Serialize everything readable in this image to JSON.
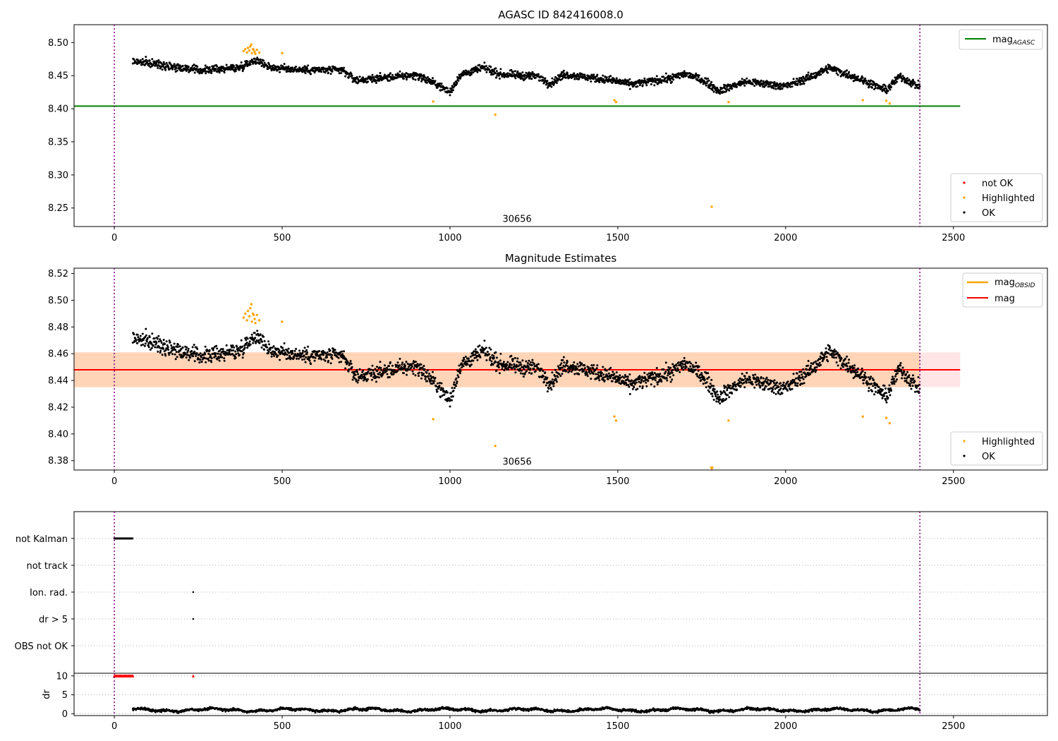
{
  "chart_data": [
    {
      "type": "scatter",
      "title": "AGASC ID 842416008.0",
      "xlim": [
        -120,
        2780
      ],
      "ylim": [
        8.222,
        8.527
      ],
      "x_ticks": [
        0,
        500,
        1000,
        1500,
        2000,
        2500
      ],
      "y_ticks": [
        "8.25",
        "8.30",
        "8.35",
        "8.40",
        "8.45",
        "8.50"
      ],
      "vlines": [
        0,
        2400
      ],
      "obsid_label": {
        "text": "30656",
        "x": 1200,
        "y": 8.233
      },
      "hlines": [
        {
          "name": "mag_AGASC",
          "y": 8.404,
          "x_range": [
            -120,
            2520
          ],
          "color": "#008000"
        }
      ],
      "line_legend": {
        "placement": "top-right",
        "entries": [
          {
            "label": "mag",
            "sub": "AGASC",
            "color": "#008000"
          }
        ]
      },
      "marker_legend": {
        "placement": "bottom-right",
        "entries": [
          {
            "label": "not OK",
            "color": "#ff0000"
          },
          {
            "label": "Highlighted",
            "color": "#ffa500"
          },
          {
            "label": "OK",
            "color": "#000000"
          }
        ]
      },
      "series": [
        {
          "name": "OK",
          "color": "#000000",
          "x_range": [
            55,
            2400
          ],
          "trend": [
            [
              55,
              8.472
            ],
            [
              150,
              8.466
            ],
            [
              250,
              8.458
            ],
            [
              370,
              8.462
            ],
            [
              420,
              8.474
            ],
            [
              470,
              8.462
            ],
            [
              560,
              8.459
            ],
            [
              680,
              8.458
            ],
            [
              720,
              8.443
            ],
            [
              900,
              8.451
            ],
            [
              960,
              8.437
            ],
            [
              1000,
              8.425
            ],
            [
              1030,
              8.451
            ],
            [
              1100,
              8.462
            ],
            [
              1150,
              8.452
            ],
            [
              1260,
              8.449
            ],
            [
              1300,
              8.438
            ],
            [
              1340,
              8.452
            ],
            [
              1480,
              8.443
            ],
            [
              1540,
              8.437
            ],
            [
              1660,
              8.446
            ],
            [
              1700,
              8.453
            ],
            [
              1760,
              8.442
            ],
            [
              1800,
              8.427
            ],
            [
              1880,
              8.441
            ],
            [
              2000,
              8.434
            ],
            [
              2080,
              8.449
            ],
            [
              2130,
              8.462
            ],
            [
              2230,
              8.443
            ],
            [
              2300,
              8.428
            ],
            [
              2340,
              8.449
            ],
            [
              2400,
              8.433
            ]
          ],
          "scatter_sd": 0.0055
        },
        {
          "name": "Highlighted",
          "color": "#ffa500",
          "points": [
            [
              385,
              8.487
            ],
            [
              390,
              8.49
            ],
            [
              395,
              8.485
            ],
            [
              398,
              8.492
            ],
            [
              402,
              8.488
            ],
            [
              405,
              8.494
            ],
            [
              408,
              8.497
            ],
            [
              410,
              8.484
            ],
            [
              413,
              8.49
            ],
            [
              415,
              8.489
            ],
            [
              418,
              8.486
            ],
            [
              420,
              8.483
            ],
            [
              425,
              8.489
            ],
            [
              432,
              8.485
            ],
            [
              500,
              8.484
            ],
            [
              950,
              8.411
            ],
            [
              1135,
              8.391
            ],
            [
              1490,
              8.413
            ],
            [
              1495,
              8.41
            ],
            [
              1780,
              8.252
            ],
            [
              1830,
              8.41
            ],
            [
              2230,
              8.413
            ],
            [
              2300,
              8.412
            ],
            [
              2310,
              8.408
            ]
          ]
        }
      ]
    },
    {
      "type": "scatter",
      "title": "Magnitude Estimates",
      "xlim": [
        -120,
        2780
      ],
      "ylim": [
        8.373,
        8.524
      ],
      "x_ticks": [
        0,
        500,
        1000,
        1500,
        2000,
        2500
      ],
      "y_ticks": [
        "8.38",
        "8.40",
        "8.42",
        "8.44",
        "8.46",
        "8.48",
        "8.50",
        "8.52"
      ],
      "vlines": [
        0,
        2400
      ],
      "obsid_label": {
        "text": "30656",
        "x": 1200,
        "y": 8.379
      },
      "bands": [
        {
          "name": "mag_OBSID band",
          "y_range": [
            8.435,
            8.461
          ],
          "x_range": [
            -120,
            2400
          ],
          "color": "#ffa500",
          "opacity": 0.2
        },
        {
          "name": "mag band",
          "y_range": [
            8.435,
            8.461
          ],
          "x_range": [
            -120,
            2520
          ],
          "color": "#ff0000",
          "opacity": 0.1
        }
      ],
      "hlines": [
        {
          "name": "mag_OBSID",
          "y": 8.448,
          "x_range": [
            -120,
            2400
          ],
          "color": "#ffa500"
        },
        {
          "name": "mag",
          "y": 8.448,
          "x_range": [
            -120,
            2520
          ],
          "color": "#ff0000"
        }
      ],
      "line_legend": {
        "placement": "top-right",
        "entries": [
          {
            "label": "mag",
            "sub": "OBSID",
            "color": "#ffa500"
          },
          {
            "label": "mag",
            "sub": "",
            "color": "#ff0000"
          }
        ]
      },
      "marker_legend": {
        "placement": "bottom-right",
        "entries": [
          {
            "label": "Highlighted",
            "color": "#ffa500"
          },
          {
            "label": "OK",
            "color": "#000000"
          }
        ]
      },
      "series": [
        {
          "name": "OK",
          "color": "#000000",
          "x_range": [
            55,
            2400
          ],
          "trend": [
            [
              55,
              8.472
            ],
            [
              150,
              8.466
            ],
            [
              250,
              8.458
            ],
            [
              370,
              8.462
            ],
            [
              420,
              8.474
            ],
            [
              470,
              8.462
            ],
            [
              560,
              8.459
            ],
            [
              680,
              8.458
            ],
            [
              720,
              8.443
            ],
            [
              900,
              8.451
            ],
            [
              960,
              8.437
            ],
            [
              1000,
              8.425
            ],
            [
              1030,
              8.451
            ],
            [
              1100,
              8.462
            ],
            [
              1150,
              8.452
            ],
            [
              1260,
              8.449
            ],
            [
              1300,
              8.438
            ],
            [
              1340,
              8.452
            ],
            [
              1480,
              8.443
            ],
            [
              1540,
              8.437
            ],
            [
              1660,
              8.446
            ],
            [
              1700,
              8.453
            ],
            [
              1760,
              8.442
            ],
            [
              1800,
              8.427
            ],
            [
              1880,
              8.441
            ],
            [
              2000,
              8.434
            ],
            [
              2080,
              8.449
            ],
            [
              2130,
              8.462
            ],
            [
              2230,
              8.443
            ],
            [
              2300,
              8.428
            ],
            [
              2340,
              8.449
            ],
            [
              2400,
              8.433
            ]
          ],
          "scatter_sd": 0.0055
        },
        {
          "name": "Highlighted",
          "color": "#ffa500",
          "points": [
            [
              385,
              8.487
            ],
            [
              390,
              8.49
            ],
            [
              395,
              8.485
            ],
            [
              398,
              8.492
            ],
            [
              402,
              8.488
            ],
            [
              405,
              8.494
            ],
            [
              408,
              8.497
            ],
            [
              410,
              8.484
            ],
            [
              413,
              8.49
            ],
            [
              415,
              8.489
            ],
            [
              418,
              8.486
            ],
            [
              420,
              8.483
            ],
            [
              425,
              8.489
            ],
            [
              432,
              8.485
            ],
            [
              500,
              8.484
            ],
            [
              950,
              8.411
            ],
            [
              1135,
              8.391
            ],
            [
              1490,
              8.413
            ],
            [
              1495,
              8.41
            ],
            [
              1830,
              8.41
            ],
            [
              2230,
              8.413
            ],
            [
              2300,
              8.412
            ],
            [
              2310,
              8.408
            ]
          ]
        },
        {
          "name": "Highlighted (below axis)",
          "color": "#ffa500",
          "marker": "triangle-down",
          "points": [
            [
              1780,
              8.374
            ]
          ]
        }
      ]
    },
    {
      "type": "scatter",
      "title": "",
      "xlim": [
        -120,
        2780
      ],
      "categories": [
        "not Kalman",
        "not track",
        "Ion. rad.",
        "dr > 5",
        "OBS not OK"
      ],
      "vlines": [
        0,
        2400
      ],
      "flags": [
        {
          "category": "not Kalman",
          "x_range": [
            0,
            55
          ],
          "color": "#000000"
        },
        {
          "category": "Ion. rad.",
          "x": [
            235
          ],
          "color": "#000000"
        },
        {
          "category": "dr > 5",
          "x": [
            235
          ],
          "color": "#000000"
        }
      ]
    },
    {
      "type": "scatter",
      "title": "",
      "xlim": [
        -120,
        2780
      ],
      "ylim": [
        -0.5,
        10.7
      ],
      "x_ticks": [
        0,
        500,
        1000,
        1500,
        2000,
        2500
      ],
      "y_ticks": [
        "0",
        "5",
        "10"
      ],
      "ylabel": "dr",
      "vlines": [
        0,
        2400
      ],
      "series": [
        {
          "name": "dr",
          "color": "#000000",
          "x_range": [
            55,
            2400
          ],
          "mean": 1.0,
          "amplitude": 0.55
        },
        {
          "name": "dr capped",
          "color": "#ff0000",
          "marker": "triangle-up",
          "x_range": [
            0,
            55
          ],
          "value": 10
        },
        {
          "name": "dr capped single",
          "color": "#ff0000",
          "marker": "triangle-up",
          "x": [
            235
          ],
          "value": 10
        }
      ]
    }
  ]
}
